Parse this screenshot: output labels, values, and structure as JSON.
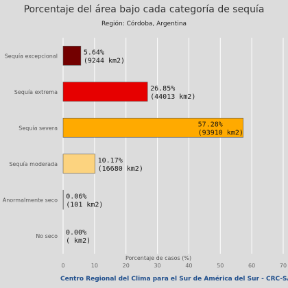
{
  "chart_data": {
    "type": "bar",
    "orientation": "horizontal",
    "title": "Porcentaje del área bajo cada categoría de sequía",
    "subtitle": "Región: Córdoba, Argentina",
    "xlabel": "Porcentaje de casos (%)",
    "xlim": [
      0,
      70
    ],
    "xticks": [
      0,
      10,
      20,
      30,
      40,
      50,
      60,
      70
    ],
    "grid": true,
    "categories": [
      "Sequía excepcional",
      "Sequía extrema",
      "Sequía severa",
      "Sequía moderada",
      "Anormalmente seco",
      "No seco"
    ],
    "values": [
      5.64,
      26.85,
      57.28,
      10.17,
      0.06,
      0.0
    ],
    "value_labels": [
      "5.64%",
      "26.85%",
      "57.28%",
      "10.17%",
      "0.06%",
      "0.00%"
    ],
    "area_labels": [
      "(9244 km2)",
      "(44013 km2)",
      "(93910 km2)",
      "(16680 km2)",
      "(101 km2)",
      "( km2)"
    ],
    "colors": [
      "#730000",
      "#e60000",
      "#ffaa00",
      "#fcd37f",
      "#ffff00",
      "#ffffff"
    ]
  },
  "footer": "Centro Regional del Clima para el Sur de América del Sur - CRC-SAS"
}
